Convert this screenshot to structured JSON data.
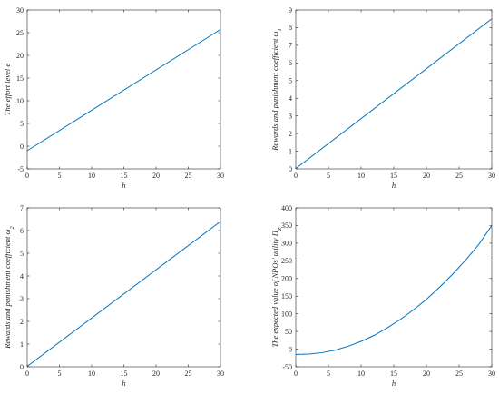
{
  "colors": {
    "line": "#0072BD",
    "axis": "#262626",
    "background": "#ffffff"
  },
  "chart_data": [
    {
      "type": "line",
      "xlabel": "h",
      "ylabel": "The effort level e",
      "xlim": [
        0,
        30
      ],
      "ylim": [
        -5,
        30
      ],
      "xticks": [
        "0",
        "5",
        "10",
        "15",
        "20",
        "25",
        "30"
      ],
      "yticks": [
        "-5",
        "0",
        "5",
        "10",
        "15",
        "20",
        "25",
        "30"
      ],
      "series": [
        {
          "x": [
            0,
            30
          ],
          "y": [
            -1,
            25.7
          ]
        }
      ]
    },
    {
      "type": "line",
      "xlabel": "h",
      "ylabel": "Rewards and punishment coefficient ω₁",
      "xlim": [
        0,
        30
      ],
      "ylim": [
        0,
        9
      ],
      "xticks": [
        "0",
        "5",
        "10",
        "15",
        "20",
        "25",
        "30"
      ],
      "yticks": [
        "0",
        "1",
        "2",
        "3",
        "4",
        "5",
        "6",
        "7",
        "8",
        "9"
      ],
      "series": [
        {
          "x": [
            0,
            30
          ],
          "y": [
            0.02,
            8.5
          ]
        }
      ]
    },
    {
      "type": "line",
      "xlabel": "h",
      "ylabel": "Rewards and punishment coefficient ω₂",
      "xlim": [
        0,
        30
      ],
      "ylim": [
        0,
        7
      ],
      "xticks": [
        "0",
        "5",
        "10",
        "15",
        "20",
        "25",
        "30"
      ],
      "yticks": [
        "0",
        "1",
        "2",
        "3",
        "4",
        "5",
        "6",
        "7"
      ],
      "series": [
        {
          "x": [
            0,
            30
          ],
          "y": [
            0.02,
            6.4
          ]
        }
      ]
    },
    {
      "type": "line",
      "xlabel": "h",
      "ylabel": "The expected value of NPOs' utility Π_Z",
      "xlim": [
        0,
        30
      ],
      "ylim": [
        -50,
        400
      ],
      "xticks": [
        "0",
        "5",
        "10",
        "15",
        "20",
        "25",
        "30"
      ],
      "yticks": [
        "-50",
        "0",
        "50",
        "100",
        "150",
        "200",
        "250",
        "300",
        "350",
        "400"
      ],
      "series": [
        {
          "x": [
            0,
            2,
            4,
            6,
            8,
            10,
            12,
            14,
            16,
            18,
            20,
            22,
            24,
            26,
            28,
            30
          ],
          "y": [
            -15,
            -14,
            -10,
            -3,
            8,
            22,
            39,
            60,
            84,
            111,
            141,
            175,
            212,
            252,
            296,
            350
          ]
        }
      ]
    }
  ]
}
